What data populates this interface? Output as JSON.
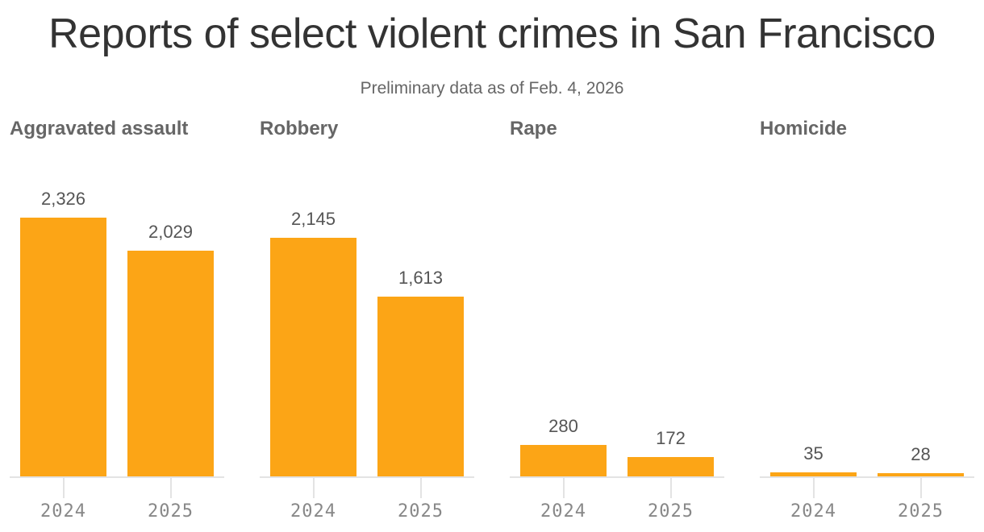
{
  "header": {
    "title": "Reports of select violent crimes in San Francisco",
    "subtitle": "Preliminary data as of Feb. 4, 2026"
  },
  "colors": {
    "bar": "#fca516",
    "axis": "#e3e3e3",
    "title": "#333333",
    "muted": "#666666"
  },
  "panels": [
    {
      "title": "Aggravated assault",
      "bars": [
        {
          "year": "2024",
          "value": 2326,
          "label": "2,326"
        },
        {
          "year": "2025",
          "value": 2029,
          "label": "2,029"
        }
      ]
    },
    {
      "title": "Robbery",
      "bars": [
        {
          "year": "2024",
          "value": 2145,
          "label": "2,145"
        },
        {
          "year": "2025",
          "value": 1613,
          "label": "1,613"
        }
      ]
    },
    {
      "title": "Rape",
      "bars": [
        {
          "year": "2024",
          "value": 280,
          "label": "280"
        },
        {
          "year": "2025",
          "value": 172,
          "label": "172"
        }
      ]
    },
    {
      "title": "Homicide",
      "bars": [
        {
          "year": "2024",
          "value": 35,
          "label": "35"
        },
        {
          "year": "2025",
          "value": 28,
          "label": "28"
        }
      ]
    }
  ],
  "chart_data": {
    "type": "bar",
    "title": "Reports of select violent crimes in San Francisco",
    "subtitle": "Preliminary data as of Feb. 4, 2026",
    "categories": [
      "2024",
      "2025"
    ],
    "facets": [
      "Aggravated assault",
      "Robbery",
      "Rape",
      "Homicide"
    ],
    "series": [
      {
        "name": "Aggravated assault",
        "values": [
          2326,
          2029
        ]
      },
      {
        "name": "Robbery",
        "values": [
          2145,
          1613
        ]
      },
      {
        "name": "Rape",
        "values": [
          280,
          172
        ]
      },
      {
        "name": "Homicide",
        "values": [
          35,
          28
        ]
      }
    ],
    "xlabel": "",
    "ylabel": "",
    "ylim": [
      0,
      2326
    ],
    "grid": false,
    "legend": "none",
    "data_labels": true
  }
}
